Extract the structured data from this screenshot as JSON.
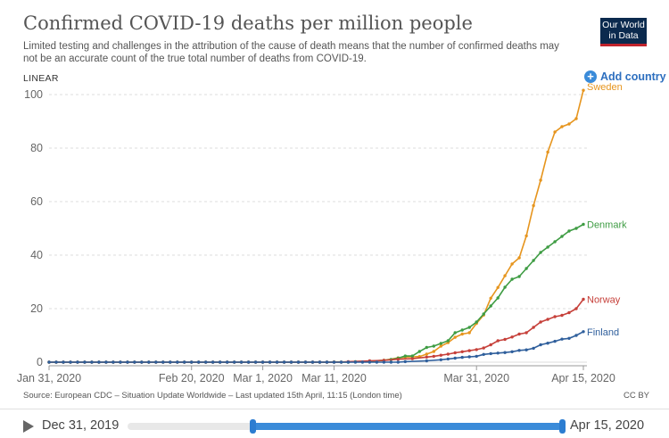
{
  "header": {
    "title": "Confirmed COVID-19 deaths per million people",
    "subtitle": "Limited testing and challenges in the attribution of the cause of death means that the number of confirmed deaths may not be an accurate count of the true total number of deaths from COVID-19."
  },
  "logo": {
    "line1": "Our World",
    "line2": "in Data"
  },
  "controls": {
    "scale_label": "LINEAR",
    "add_country_label": "Add country"
  },
  "footer": {
    "source": "Source: European CDC – Situation Update Worldwide – Last updated 15th April, 11:15 (London time)",
    "license": "CC BY"
  },
  "timeline": {
    "start_label": "Dec 31, 2019",
    "end_label": "Apr 15, 2020"
  },
  "chart_data": {
    "type": "line",
    "title": "Confirmed COVID-19 deaths per million people",
    "xlabel": "",
    "ylabel": "",
    "x_range": [
      "2020-01-31",
      "2020-04-15"
    ],
    "ylim": [
      0,
      100
    ],
    "y_ticks": [
      0,
      20,
      40,
      60,
      80,
      100
    ],
    "x_ticks": [
      {
        "date": "2020-01-31",
        "label": "Jan 31, 2020"
      },
      {
        "date": "2020-02-20",
        "label": "Feb 20, 2020"
      },
      {
        "date": "2020-03-01",
        "label": "Mar 1, 2020"
      },
      {
        "date": "2020-03-11",
        "label": "Mar 11, 2020"
      },
      {
        "date": "2020-03-31",
        "label": "Mar 31, 2020"
      },
      {
        "date": "2020-04-15",
        "label": "Apr 15, 2020"
      }
    ],
    "grid": true,
    "legend": "line-end labels",
    "series": [
      {
        "name": "Sweden",
        "color": "#e6951e",
        "points": [
          [
            "2020-03-11",
            0.1
          ],
          [
            "2020-03-14",
            0.1
          ],
          [
            "2020-03-16",
            0.3
          ],
          [
            "2020-03-18",
            0.7
          ],
          [
            "2020-03-20",
            1.6
          ],
          [
            "2020-03-21",
            1.9
          ],
          [
            "2020-03-22",
            2.0
          ],
          [
            "2020-03-23",
            2.1
          ],
          [
            "2020-03-24",
            3.0
          ],
          [
            "2020-03-25",
            4.0
          ],
          [
            "2020-03-26",
            6.0
          ],
          [
            "2020-03-27",
            7.3
          ],
          [
            "2020-03-28",
            9.3
          ],
          [
            "2020-03-29",
            10.5
          ],
          [
            "2020-03-30",
            11.0
          ],
          [
            "2020-03-31",
            14.5
          ],
          [
            "2020-04-01",
            17.6
          ],
          [
            "2020-04-02",
            23.9
          ],
          [
            "2020-04-03",
            27.9
          ],
          [
            "2020-04-04",
            32.3
          ],
          [
            "2020-04-05",
            36.7
          ],
          [
            "2020-04-06",
            39.0
          ],
          [
            "2020-04-07",
            47.2
          ],
          [
            "2020-04-08",
            58.5
          ],
          [
            "2020-04-09",
            68.0
          ],
          [
            "2020-04-10",
            78.5
          ],
          [
            "2020-04-11",
            86.0
          ],
          [
            "2020-04-12",
            88.0
          ],
          [
            "2020-04-13",
            89.0
          ],
          [
            "2020-04-14",
            91.0
          ],
          [
            "2020-04-15",
            101.6
          ]
        ]
      },
      {
        "name": "Denmark",
        "color": "#3e9c43",
        "points": [
          [
            "2020-03-14",
            0.2
          ],
          [
            "2020-03-16",
            0.4
          ],
          [
            "2020-03-18",
            0.7
          ],
          [
            "2020-03-19",
            1.0
          ],
          [
            "2020-03-20",
            1.5
          ],
          [
            "2020-03-21",
            2.3
          ],
          [
            "2020-03-22",
            2.3
          ],
          [
            "2020-03-23",
            4.0
          ],
          [
            "2020-03-24",
            5.5
          ],
          [
            "2020-03-25",
            6.0
          ],
          [
            "2020-03-26",
            7.0
          ],
          [
            "2020-03-27",
            8.0
          ],
          [
            "2020-03-28",
            11.0
          ],
          [
            "2020-03-29",
            12.0
          ],
          [
            "2020-03-30",
            13.0
          ],
          [
            "2020-03-31",
            15.0
          ],
          [
            "2020-04-01",
            18.0
          ],
          [
            "2020-04-02",
            21.0
          ],
          [
            "2020-04-03",
            24.0
          ],
          [
            "2020-04-04",
            28.0
          ],
          [
            "2020-04-05",
            31.0
          ],
          [
            "2020-04-06",
            32.0
          ],
          [
            "2020-04-07",
            35.0
          ],
          [
            "2020-04-08",
            38.0
          ],
          [
            "2020-04-09",
            41.0
          ],
          [
            "2020-04-10",
            43.0
          ],
          [
            "2020-04-11",
            45.0
          ],
          [
            "2020-04-12",
            47.0
          ],
          [
            "2020-04-13",
            49.0
          ],
          [
            "2020-04-14",
            50.0
          ],
          [
            "2020-04-15",
            51.5
          ]
        ]
      },
      {
        "name": "Norway",
        "color": "#c6403a",
        "points": [
          [
            "2020-03-13",
            0.2
          ],
          [
            "2020-03-16",
            0.5
          ],
          [
            "2020-03-18",
            0.7
          ],
          [
            "2020-03-20",
            1.1
          ],
          [
            "2020-03-22",
            1.3
          ],
          [
            "2020-03-24",
            1.9
          ],
          [
            "2020-03-25",
            2.2
          ],
          [
            "2020-03-26",
            2.6
          ],
          [
            "2020-03-27",
            3.0
          ],
          [
            "2020-03-28",
            3.5
          ],
          [
            "2020-03-29",
            3.9
          ],
          [
            "2020-03-30",
            4.3
          ],
          [
            "2020-03-31",
            4.7
          ],
          [
            "2020-04-01",
            5.3
          ],
          [
            "2020-04-02",
            6.5
          ],
          [
            "2020-04-03",
            8.0
          ],
          [
            "2020-04-04",
            8.5
          ],
          [
            "2020-04-05",
            9.4
          ],
          [
            "2020-04-06",
            10.5
          ],
          [
            "2020-04-07",
            11.0
          ],
          [
            "2020-04-08",
            13.0
          ],
          [
            "2020-04-09",
            15.0
          ],
          [
            "2020-04-10",
            16.0
          ],
          [
            "2020-04-11",
            17.0
          ],
          [
            "2020-04-12",
            17.5
          ],
          [
            "2020-04-13",
            18.5
          ],
          [
            "2020-04-14",
            20.0
          ],
          [
            "2020-04-15",
            23.5
          ]
        ]
      },
      {
        "name": "Finland",
        "color": "#2f5f9c",
        "points": [
          [
            "2020-03-21",
            0.2
          ],
          [
            "2020-03-24",
            0.5
          ],
          [
            "2020-03-26",
            0.9
          ],
          [
            "2020-03-27",
            1.2
          ],
          [
            "2020-03-28",
            1.5
          ],
          [
            "2020-03-29",
            1.8
          ],
          [
            "2020-03-30",
            2.0
          ],
          [
            "2020-03-31",
            2.2
          ],
          [
            "2020-04-01",
            2.9
          ],
          [
            "2020-04-02",
            3.2
          ],
          [
            "2020-04-03",
            3.4
          ],
          [
            "2020-04-04",
            3.6
          ],
          [
            "2020-04-05",
            3.9
          ],
          [
            "2020-04-06",
            4.4
          ],
          [
            "2020-04-07",
            4.6
          ],
          [
            "2020-04-08",
            5.2
          ],
          [
            "2020-04-09",
            6.5
          ],
          [
            "2020-04-10",
            7.1
          ],
          [
            "2020-04-11",
            7.8
          ],
          [
            "2020-04-12",
            8.6
          ],
          [
            "2020-04-13",
            8.9
          ],
          [
            "2020-04-14",
            10.0
          ],
          [
            "2020-04-15",
            11.4
          ]
        ]
      }
    ]
  }
}
